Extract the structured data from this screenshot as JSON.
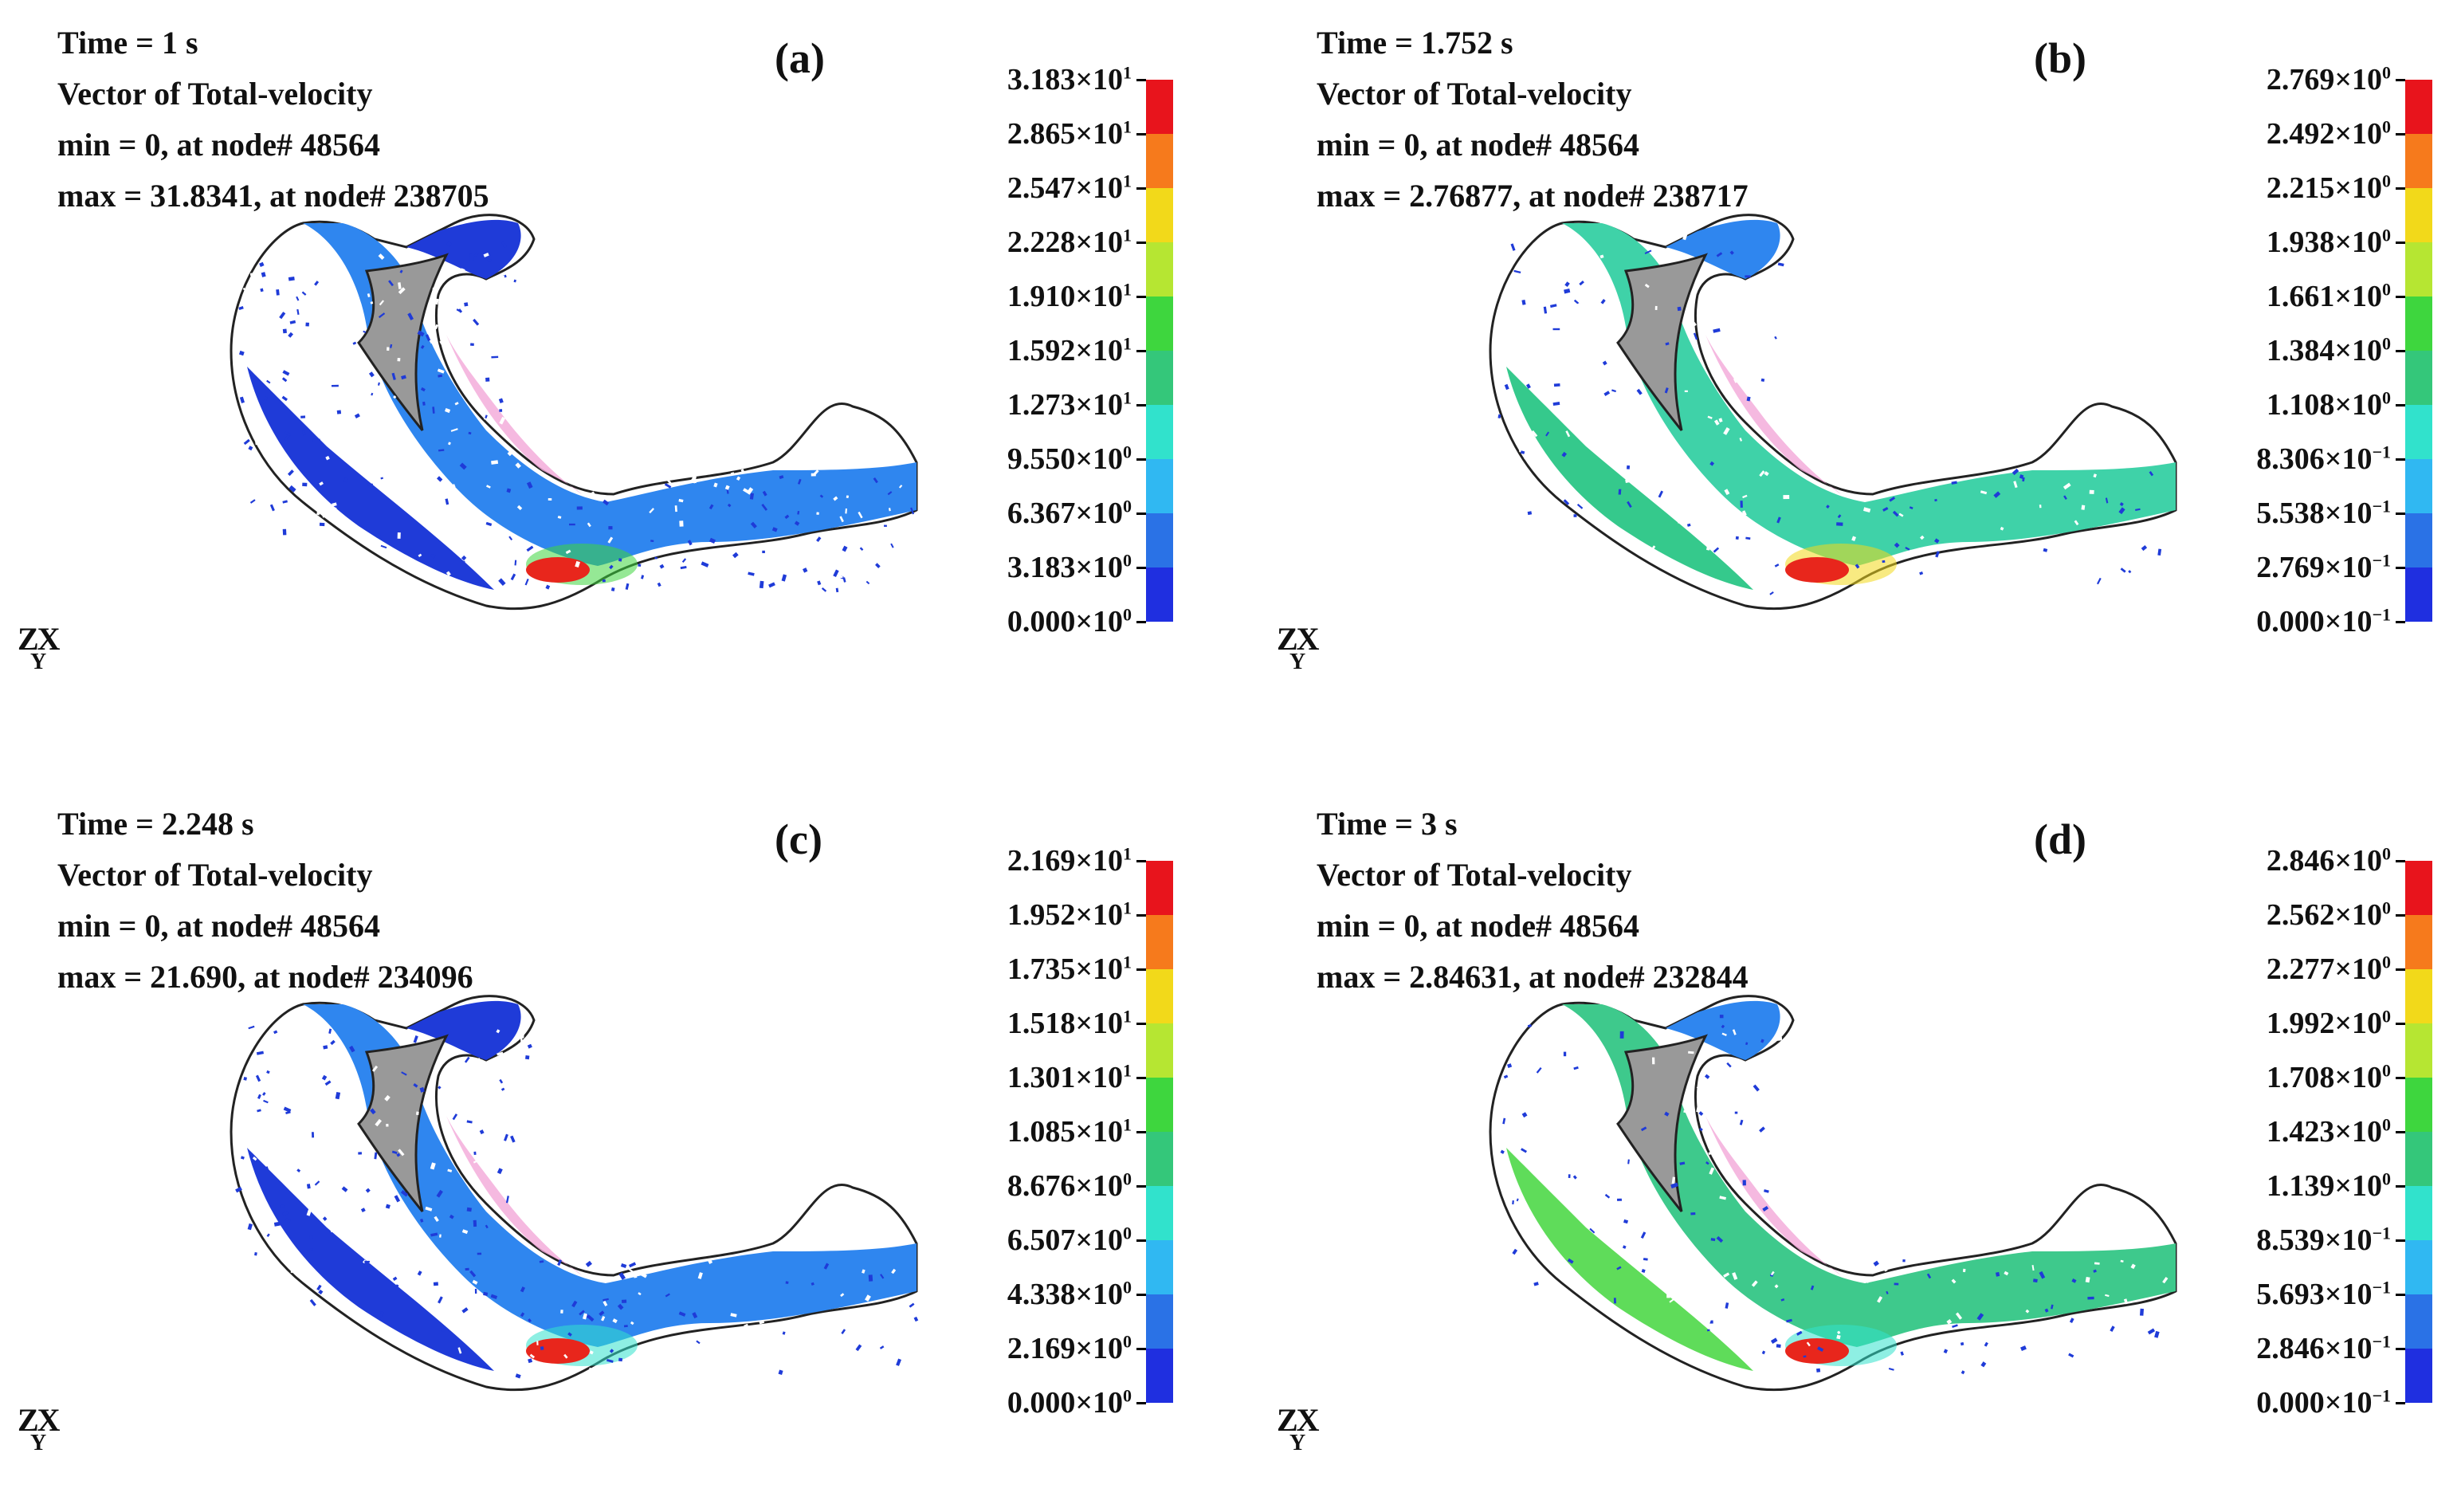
{
  "colormap": [
    "#e8141c",
    "#f67a1c",
    "#f2d91a",
    "#b6e632",
    "#3ed63e",
    "#34c77a",
    "#31e2cc",
    "#30b8f2",
    "#2a72e6",
    "#1f2fe0"
  ],
  "model": {
    "fill_dense": "#1f3bd8",
    "fill_mid": "#2f86ef",
    "fill_fast": "#3fdc9a",
    "jet": "#e8261c",
    "insert": "#999999",
    "tissue": "#f2a8d8"
  },
  "panels": [
    {
      "id": "a",
      "label": "(a)",
      "time": "Time = 1 s",
      "vector": "Vector of Total-velocity",
      "min": "min = 0, at node# 48564",
      "max": "max = 31.8341, at node# 238705",
      "axis": "ZX",
      "axis_sub": "Y",
      "ticks": [
        {
          "mantissa": "3.183×10",
          "exp": "1"
        },
        {
          "mantissa": "2.865×10",
          "exp": "1"
        },
        {
          "mantissa": "2.547×10",
          "exp": "1"
        },
        {
          "mantissa": "2.228×10",
          "exp": "1"
        },
        {
          "mantissa": "1.910×10",
          "exp": "1"
        },
        {
          "mantissa": "1.592×10",
          "exp": "1"
        },
        {
          "mantissa": "1.273×10",
          "exp": "1"
        },
        {
          "mantissa": "9.550×10",
          "exp": "0"
        },
        {
          "mantissa": "6.367×10",
          "exp": "0"
        },
        {
          "mantissa": "3.183×10",
          "exp": "0"
        },
        {
          "mantissa": "0.000×10",
          "exp": "0"
        }
      ]
    },
    {
      "id": "b",
      "label": "(b)",
      "time": "Time = 1.752 s",
      "vector": "Vector of Total-velocity",
      "min": "min = 0, at node# 48564",
      "max": "max = 2.76877, at node# 238717",
      "axis": "ZX",
      "axis_sub": "Y",
      "ticks": [
        {
          "mantissa": "2.769×10",
          "exp": "0"
        },
        {
          "mantissa": "2.492×10",
          "exp": "0"
        },
        {
          "mantissa": "2.215×10",
          "exp": "0"
        },
        {
          "mantissa": "1.938×10",
          "exp": "0"
        },
        {
          "mantissa": "1.661×10",
          "exp": "0"
        },
        {
          "mantissa": "1.384×10",
          "exp": "0"
        },
        {
          "mantissa": "1.108×10",
          "exp": "0"
        },
        {
          "mantissa": "8.306×10",
          "exp": "−1"
        },
        {
          "mantissa": "5.538×10",
          "exp": "−1"
        },
        {
          "mantissa": "2.769×10",
          "exp": "−1"
        },
        {
          "mantissa": "0.000×10",
          "exp": "−1"
        }
      ]
    },
    {
      "id": "c",
      "label": "(c)",
      "time": "Time = 2.248 s",
      "vector": "Vector of Total-velocity",
      "min": "min = 0, at node# 48564",
      "max": "max = 21.690, at node# 234096",
      "axis": "ZX",
      "axis_sub": "Y",
      "ticks": [
        {
          "mantissa": "2.169×10",
          "exp": "1"
        },
        {
          "mantissa": "1.952×10",
          "exp": "1"
        },
        {
          "mantissa": "1.735×10",
          "exp": "1"
        },
        {
          "mantissa": "1.518×10",
          "exp": "1"
        },
        {
          "mantissa": "1.301×10",
          "exp": "1"
        },
        {
          "mantissa": "1.085×10",
          "exp": "1"
        },
        {
          "mantissa": "8.676×10",
          "exp": "0"
        },
        {
          "mantissa": "6.507×10",
          "exp": "0"
        },
        {
          "mantissa": "4.338×10",
          "exp": "0"
        },
        {
          "mantissa": "2.169×10",
          "exp": "0"
        },
        {
          "mantissa": "0.000×10",
          "exp": "0"
        }
      ]
    },
    {
      "id": "d",
      "label": "(d)",
      "time": "Time = 3 s",
      "vector": "Vector of Total-velocity",
      "min": "min = 0, at node# 48564",
      "max": "max = 2.84631, at node# 232844",
      "axis": "ZX",
      "axis_sub": "Y",
      "ticks": [
        {
          "mantissa": "2.846×10",
          "exp": "0"
        },
        {
          "mantissa": "2.562×10",
          "exp": "0"
        },
        {
          "mantissa": "2.277×10",
          "exp": "0"
        },
        {
          "mantissa": "1.992×10",
          "exp": "0"
        },
        {
          "mantissa": "1.708×10",
          "exp": "0"
        },
        {
          "mantissa": "1.423×10",
          "exp": "0"
        },
        {
          "mantissa": "1.139×10",
          "exp": "0"
        },
        {
          "mantissa": "8.539×10",
          "exp": "−1"
        },
        {
          "mantissa": "5.693×10",
          "exp": "−1"
        },
        {
          "mantissa": "2.846×10",
          "exp": "−1"
        },
        {
          "mantissa": "0.000×10",
          "exp": "−1"
        }
      ]
    }
  ]
}
